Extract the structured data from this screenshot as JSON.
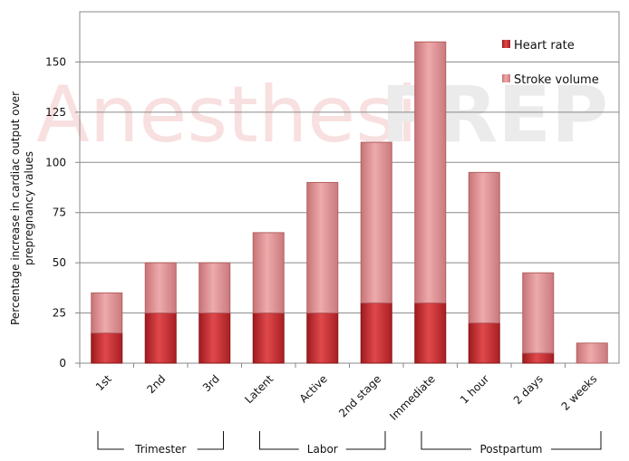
{
  "chart_data": {
    "type": "bar",
    "stacked": true,
    "categories": [
      "1st",
      "2nd",
      "3rd",
      "Latent",
      "Active",
      "2nd stage",
      "Immediate",
      "1 hour",
      "2 days",
      "2 weeks"
    ],
    "series": [
      {
        "name": "Heart rate",
        "values": [
          15,
          25,
          25,
          25,
          25,
          30,
          30,
          20,
          5,
          0
        ],
        "color": "#c0282c"
      },
      {
        "name": "Stroke volume",
        "values": [
          20,
          25,
          25,
          40,
          65,
          80,
          130,
          75,
          40,
          10
        ],
        "color": "#dc8f91"
      }
    ],
    "ylabel": "Percentage increase in cardiac output over prepregnancy values",
    "ylabel_lines": [
      "Percentage increase in cardiac output  over",
      "prepregnancy  values"
    ],
    "ylim": [
      0,
      175
    ],
    "yticks": [
      0,
      25,
      50,
      75,
      100,
      125,
      150
    ],
    "grid": true,
    "legend": "top-right",
    "groups": [
      {
        "label": "Trimester",
        "from": 0,
        "to": 2
      },
      {
        "label": "Labor",
        "from": 3,
        "to": 5
      },
      {
        "label": "Postpartum",
        "from": 6,
        "to": 9
      }
    ]
  },
  "watermark": {
    "part1": "Anesthesia",
    "part2": "PREP"
  }
}
